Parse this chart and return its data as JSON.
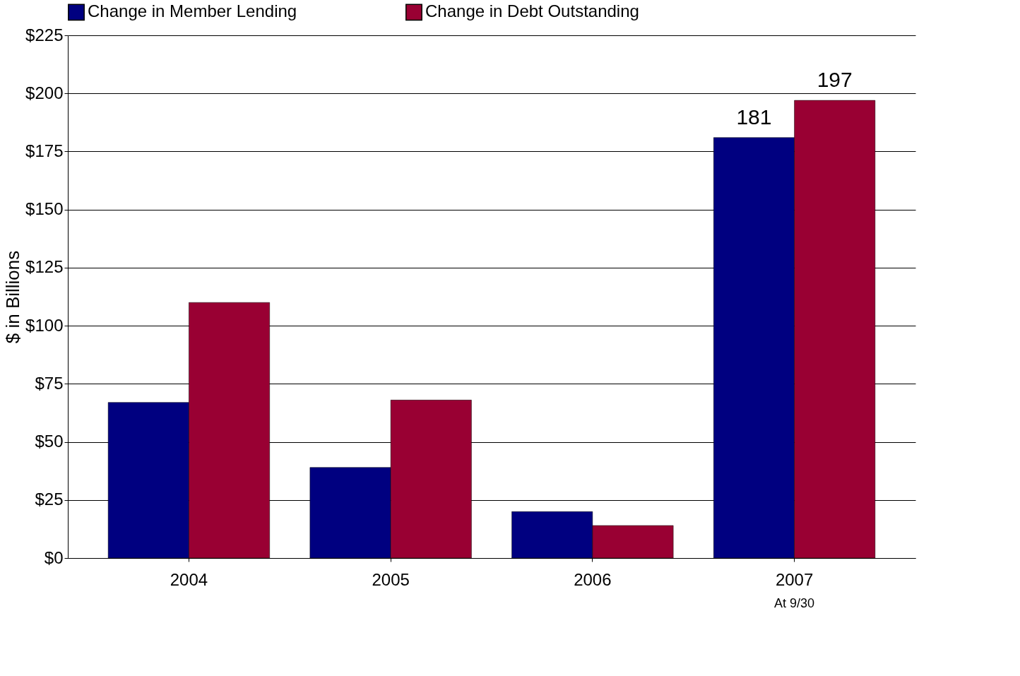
{
  "chart_data": {
    "type": "bar",
    "ylabel": "$ in Billions",
    "categories": [
      "2004",
      "2005",
      "2006",
      "2007"
    ],
    "series": [
      {
        "name": "Change in Member Lending",
        "color": "#000080",
        "values": [
          67,
          39,
          20,
          181
        ],
        "value_labels": [
          null,
          null,
          null,
          "181"
        ]
      },
      {
        "name": "Change in Debt Outstanding",
        "color": "#990033",
        "values": [
          110,
          68,
          14,
          197
        ],
        "value_labels": [
          null,
          null,
          null,
          "197"
        ]
      }
    ],
    "ylim": [
      0,
      225
    ],
    "yticks": [
      {
        "value": 0,
        "label": "$0"
      },
      {
        "value": 25,
        "label": "$25"
      },
      {
        "value": 50,
        "label": "$50"
      },
      {
        "value": 75,
        "label": "$75"
      },
      {
        "value": 100,
        "label": "$100"
      },
      {
        "value": 125,
        "label": "$125"
      },
      {
        "value": 150,
        "label": "$150"
      },
      {
        "value": 175,
        "label": "$175"
      },
      {
        "value": 200,
        "label": "$200"
      },
      {
        "value": 225,
        "label": "$225"
      }
    ],
    "grid": "y",
    "legend": "top",
    "annotations": [
      "At 9/30"
    ]
  }
}
